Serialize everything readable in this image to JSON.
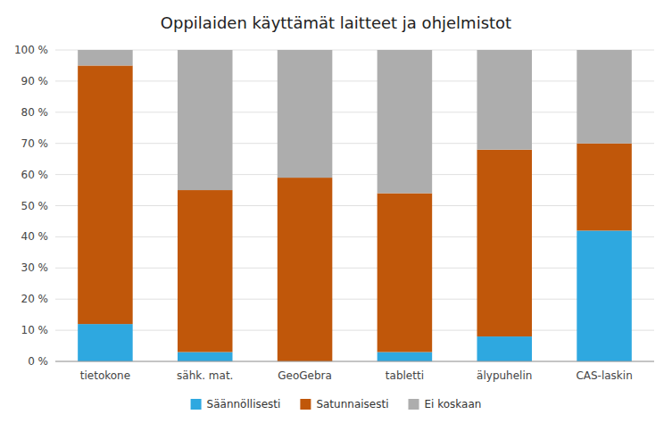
{
  "chart_data": {
    "type": "bar",
    "stacked": true,
    "title": "Oppilaiden käyttämät laitteet ja ohjelmistot",
    "categories": [
      "tietokone",
      "sähk. mat.",
      "GeoGebra",
      "tabletti",
      "älypuhelin",
      "CAS-laskin"
    ],
    "series": [
      {
        "name": "Säännöllisesti",
        "color": "#2EA8E0",
        "values": [
          12,
          3,
          0,
          3,
          8,
          42
        ]
      },
      {
        "name": "Satunnaisesti",
        "color": "#C0570A",
        "values": [
          83,
          52,
          59,
          51,
          60,
          28
        ]
      },
      {
        "name": "Ei koskaan",
        "color": "#ADADAD",
        "values": [
          5,
          45,
          41,
          46,
          32,
          30
        ]
      }
    ],
    "ylim": [
      0,
      100
    ],
    "yticks": [
      {
        "value": 0,
        "label": "0 %"
      },
      {
        "value": 10,
        "label": "10 %"
      },
      {
        "value": 20,
        "label": "20 %"
      },
      {
        "value": 30,
        "label": "30 %"
      },
      {
        "value": 40,
        "label": "40 %"
      },
      {
        "value": 50,
        "label": "50 %"
      },
      {
        "value": 60,
        "label": "60 %"
      },
      {
        "value": 70,
        "label": "70 %"
      },
      {
        "value": 80,
        "label": "80 %"
      },
      {
        "value": 90,
        "label": "90 %"
      },
      {
        "value": 100,
        "label": "100 %"
      }
    ],
    "grid": true,
    "legend": "bottom"
  }
}
